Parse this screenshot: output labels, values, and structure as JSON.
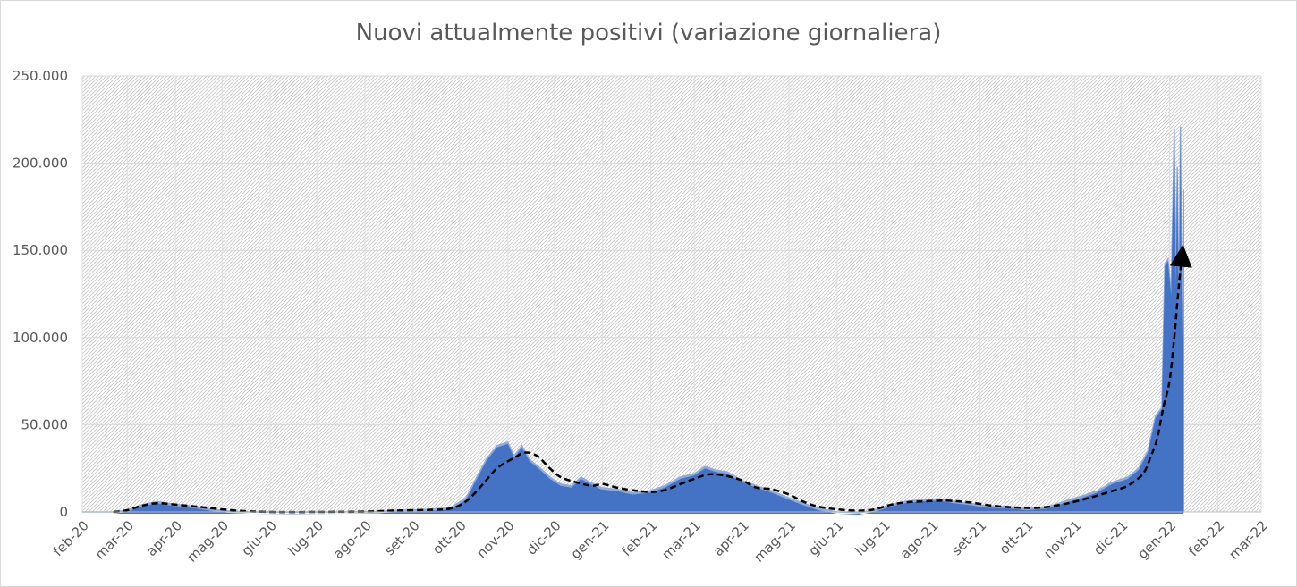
{
  "chart_data": {
    "type": "area",
    "title": "Nuovi attualmente positivi (variazione giornaliera)",
    "xlabel": "",
    "ylabel": "",
    "ylim": [
      0,
      250000
    ],
    "yticks": [
      0,
      50000,
      100000,
      150000,
      200000,
      250000
    ],
    "ytick_labels": [
      "0",
      "50.000",
      "100.000",
      "150.000",
      "200.000",
      "250.000"
    ],
    "x_tick_labels": [
      "feb-20",
      "mar-20",
      "apr-20",
      "mag-20",
      "giu-20",
      "lug-20",
      "ago-20",
      "set-20",
      "ott-20",
      "nov-20",
      "dic-20",
      "gen-21",
      "feb-21",
      "mar-21",
      "apr-21",
      "mag-21",
      "giu-21",
      "lug-21",
      "ago-21",
      "set-21",
      "ott-21",
      "nov-21",
      "dic-21",
      "gen-22",
      "feb-22",
      "mar-22"
    ],
    "grid": true,
    "legend": "none",
    "colors": {
      "area": "#4472c4",
      "area_light": "#8faadc",
      "trend": "#000000"
    },
    "series": [
      {
        "kind": "daily-area",
        "points": [
          [
            "2020-02-01",
            0
          ],
          [
            "2020-02-21",
            0
          ],
          [
            "2020-03-01",
            1000
          ],
          [
            "2020-03-10",
            4000
          ],
          [
            "2020-03-20",
            6000
          ],
          [
            "2020-03-28",
            4800
          ],
          [
            "2020-04-05",
            4000
          ],
          [
            "2020-04-15",
            3000
          ],
          [
            "2020-04-25",
            1500
          ],
          [
            "2020-05-05",
            500
          ],
          [
            "2020-05-20",
            0
          ],
          [
            "2020-06-15",
            -200
          ],
          [
            "2020-07-15",
            0
          ],
          [
            "2020-08-10",
            300
          ],
          [
            "2020-08-25",
            1000
          ],
          [
            "2020-09-10",
            1500
          ],
          [
            "2020-09-25",
            2500
          ],
          [
            "2020-10-05",
            8000
          ],
          [
            "2020-10-12",
            20000
          ],
          [
            "2020-10-18",
            30000
          ],
          [
            "2020-10-25",
            38000
          ],
          [
            "2020-11-01",
            40000
          ],
          [
            "2020-11-05",
            32000
          ],
          [
            "2020-11-10",
            38000
          ],
          [
            "2020-11-15",
            30000
          ],
          [
            "2020-11-22",
            25000
          ],
          [
            "2020-11-28",
            20000
          ],
          [
            "2020-12-05",
            16000
          ],
          [
            "2020-12-12",
            15000
          ],
          [
            "2020-12-18",
            20000
          ],
          [
            "2020-12-24",
            17000
          ],
          [
            "2020-12-31",
            14000
          ],
          [
            "2021-01-10",
            13000
          ],
          [
            "2021-01-20",
            11000
          ],
          [
            "2021-01-31",
            12000
          ],
          [
            "2021-02-10",
            15000
          ],
          [
            "2021-02-20",
            20000
          ],
          [
            "2021-03-01",
            22000
          ],
          [
            "2021-03-08",
            26000
          ],
          [
            "2021-03-15",
            24000
          ],
          [
            "2021-03-22",
            23000
          ],
          [
            "2021-04-01",
            18000
          ],
          [
            "2021-04-10",
            15000
          ],
          [
            "2021-04-20",
            12000
          ],
          [
            "2021-05-01",
            8000
          ],
          [
            "2021-05-10",
            5000
          ],
          [
            "2021-05-20",
            2000
          ],
          [
            "2021-06-01",
            0
          ],
          [
            "2021-06-15",
            -500
          ],
          [
            "2021-06-25",
            1000
          ],
          [
            "2021-07-05",
            4000
          ],
          [
            "2021-07-15",
            6000
          ],
          [
            "2021-07-25",
            7000
          ],
          [
            "2021-08-05",
            7500
          ],
          [
            "2021-08-15",
            6000
          ],
          [
            "2021-08-25",
            5000
          ],
          [
            "2021-09-05",
            3500
          ],
          [
            "2021-09-20",
            3000
          ],
          [
            "2021-10-01",
            2000
          ],
          [
            "2021-10-15",
            3000
          ],
          [
            "2021-10-25",
            6000
          ],
          [
            "2021-11-05",
            9000
          ],
          [
            "2021-11-15",
            12000
          ],
          [
            "2021-11-25",
            17000
          ],
          [
            "2021-12-05",
            20000
          ],
          [
            "2021-12-12",
            25000
          ],
          [
            "2021-12-18",
            35000
          ],
          [
            "2021-12-23",
            55000
          ],
          [
            "2021-12-27",
            60000
          ],
          [
            "2021-12-29",
            142000
          ],
          [
            "2021-12-31",
            145000
          ],
          [
            "2022-01-02",
            125000
          ],
          [
            "2022-01-04",
            220000
          ],
          [
            "2022-01-05",
            130000
          ],
          [
            "2022-01-06",
            198000
          ],
          [
            "2022-01-07",
            110000
          ],
          [
            "2022-01-08",
            221000
          ],
          [
            "2022-01-09",
            100000
          ],
          [
            "2022-01-10",
            185000
          ]
        ]
      },
      {
        "kind": "trend-dashed",
        "points": [
          [
            "2020-02-21",
            0
          ],
          [
            "2020-03-01",
            1000
          ],
          [
            "2020-03-10",
            3500
          ],
          [
            "2020-03-20",
            5000
          ],
          [
            "2020-04-01",
            4200
          ],
          [
            "2020-04-15",
            3000
          ],
          [
            "2020-05-01",
            1500
          ],
          [
            "2020-05-15",
            500
          ],
          [
            "2020-06-01",
            0
          ],
          [
            "2020-07-01",
            0
          ],
          [
            "2020-08-01",
            200
          ],
          [
            "2020-08-20",
            800
          ],
          [
            "2020-09-10",
            1200
          ],
          [
            "2020-09-25",
            2000
          ],
          [
            "2020-10-05",
            6000
          ],
          [
            "2020-10-15",
            15000
          ],
          [
            "2020-10-25",
            25000
          ],
          [
            "2020-11-05",
            31000
          ],
          [
            "2020-11-12",
            34000
          ],
          [
            "2020-11-20",
            32000
          ],
          [
            "2020-11-28",
            25000
          ],
          [
            "2020-12-05",
            20000
          ],
          [
            "2020-12-15",
            17000
          ],
          [
            "2020-12-25",
            15000
          ],
          [
            "2021-01-01",
            16000
          ],
          [
            "2021-01-10",
            14000
          ],
          [
            "2021-01-20",
            12500
          ],
          [
            "2021-02-01",
            11500
          ],
          [
            "2021-02-10",
            12500
          ],
          [
            "2021-02-20",
            16000
          ],
          [
            "2021-03-01",
            19000
          ],
          [
            "2021-03-10",
            21500
          ],
          [
            "2021-03-20",
            21000
          ],
          [
            "2021-04-01",
            18000
          ],
          [
            "2021-04-10",
            14000
          ],
          [
            "2021-04-20",
            13000
          ],
          [
            "2021-05-01",
            10000
          ],
          [
            "2021-05-10",
            6000
          ],
          [
            "2021-05-20",
            3000
          ],
          [
            "2021-06-01",
            1500
          ],
          [
            "2021-06-15",
            700
          ],
          [
            "2021-06-25",
            1500
          ],
          [
            "2021-07-05",
            4000
          ],
          [
            "2021-07-15",
            5500
          ],
          [
            "2021-07-25",
            6000
          ],
          [
            "2021-08-10",
            6500
          ],
          [
            "2021-08-25",
            5500
          ],
          [
            "2021-09-10",
            3500
          ],
          [
            "2021-09-25",
            2500
          ],
          [
            "2021-10-10",
            2500
          ],
          [
            "2021-10-25",
            4500
          ],
          [
            "2021-11-10",
            8000
          ],
          [
            "2021-11-25",
            12000
          ],
          [
            "2021-12-05",
            15000
          ],
          [
            "2021-12-15",
            22000
          ],
          [
            "2021-12-20",
            32000
          ],
          [
            "2021-12-24",
            42000
          ],
          [
            "2021-12-28",
            60000
          ],
          [
            "2022-01-01",
            75000
          ],
          [
            "2022-01-04",
            100000
          ],
          [
            "2022-01-07",
            130000
          ],
          [
            "2022-01-09",
            147000
          ]
        ]
      }
    ]
  }
}
